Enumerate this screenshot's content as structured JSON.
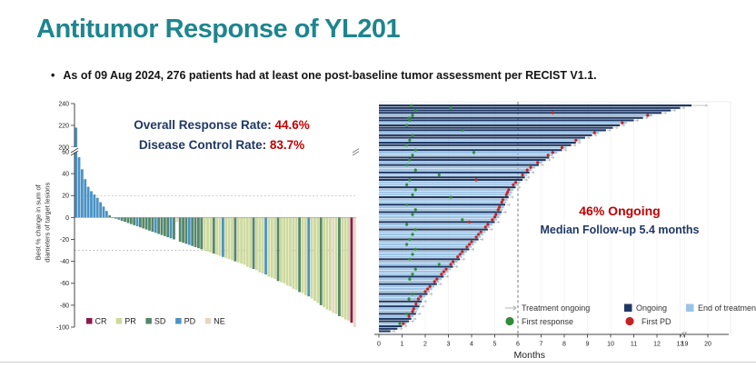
{
  "slide": {
    "title": "Antitumor Response of YL201",
    "bullet_glyph": "•",
    "bullet": "As of 09 Aug 2024, 276 patients had at least one post-baseline tumor assessment per RECIST V1.1.",
    "colors": {
      "title_teal": "#1e858e",
      "navy": "#1f3864",
      "red": "#c00000"
    }
  },
  "chart_data": [
    {
      "id": "waterfall",
      "type": "bar",
      "n_patients": 276,
      "ylabel_line1": "Best % change in sum of",
      "ylabel_line2": "diameters of target lesions",
      "yticks": [
        240,
        220,
        200,
        60,
        40,
        20,
        0,
        -20,
        -40,
        -60,
        -80,
        -100
      ],
      "ylim": [
        -100,
        240
      ],
      "axis_break_between": [
        60,
        200
      ],
      "ref_lines": [
        20,
        -30
      ],
      "overlay": {
        "orr_label": "Overall Response Rate:",
        "orr_value": "44.6%",
        "dcr_label": "Disease Control Rate:",
        "dcr_value": "83.7%"
      },
      "legend": [
        {
          "label": "CR",
          "color": "#8c1a4b"
        },
        {
          "label": "PR",
          "color": "#cdd99e"
        },
        {
          "label": "SD",
          "color": "#55876a"
        },
        {
          "label": "PD",
          "color": "#4b93c5"
        },
        {
          "label": "NE",
          "color": "#e6d6c2"
        }
      ],
      "bars": [
        [
          218,
          "PD"
        ],
        [
          55,
          "PD"
        ],
        [
          44,
          "PD"
        ],
        [
          35,
          "PD"
        ],
        [
          28,
          "PD"
        ],
        [
          24,
          "PD"
        ],
        [
          21,
          "PD"
        ],
        [
          18,
          "PD"
        ],
        [
          14,
          "PD"
        ],
        [
          10,
          "PD"
        ],
        [
          6,
          "PD"
        ],
        [
          2,
          "SD"
        ],
        [
          0,
          "SD"
        ],
        [
          -1,
          "SD"
        ],
        [
          -2,
          "PD"
        ],
        [
          -3,
          "SD"
        ],
        [
          -4,
          "SD"
        ],
        [
          -5,
          "SD"
        ],
        [
          -6,
          "SD"
        ],
        [
          -7,
          "SD"
        ],
        [
          -8,
          "PD"
        ],
        [
          -9,
          "SD"
        ],
        [
          -10,
          "SD"
        ],
        [
          -11,
          "SD"
        ],
        [
          -12,
          "SD"
        ],
        [
          -13,
          "SD"
        ],
        [
          -14,
          "PD"
        ],
        [
          -15,
          "SD"
        ],
        [
          -16,
          "SD"
        ],
        [
          -17,
          "SD"
        ],
        [
          -18,
          "SD"
        ],
        [
          -19,
          "PD"
        ],
        [
          -20,
          "SD"
        ],
        [
          -4,
          "NE"
        ],
        [
          -22,
          "SD"
        ],
        [
          -23,
          "SD"
        ],
        [
          -24,
          "SD"
        ],
        [
          -25,
          "PD"
        ],
        [
          -26,
          "SD"
        ],
        [
          -27,
          "SD"
        ],
        [
          -28,
          "SD"
        ],
        [
          -29,
          "SD"
        ],
        [
          -30,
          "PR"
        ],
        [
          -31,
          "PR"
        ],
        [
          -32,
          "PR"
        ],
        [
          -33,
          "SD"
        ],
        [
          -34,
          "PR"
        ],
        [
          -35,
          "PR"
        ],
        [
          -36,
          "PD"
        ],
        [
          -37,
          "PR"
        ],
        [
          -38,
          "PR"
        ],
        [
          -39,
          "PR"
        ],
        [
          -40,
          "SD"
        ],
        [
          -41,
          "PR"
        ],
        [
          -42,
          "PR"
        ],
        [
          -43,
          "PR"
        ],
        [
          -45,
          "PR"
        ],
        [
          -46,
          "PR"
        ],
        [
          -47,
          "SD"
        ],
        [
          -48,
          "PR"
        ],
        [
          -50,
          "PR"
        ],
        [
          -51,
          "PR"
        ],
        [
          -52,
          "PD"
        ],
        [
          -54,
          "PR"
        ],
        [
          -55,
          "PR"
        ],
        [
          -56,
          "PR"
        ],
        [
          -58,
          "SD"
        ],
        [
          -59,
          "PR"
        ],
        [
          -60,
          "PR"
        ],
        [
          -62,
          "PR"
        ],
        [
          -63,
          "PR"
        ],
        [
          -65,
          "PR"
        ],
        [
          -66,
          "PR"
        ],
        [
          -68,
          "SD"
        ],
        [
          -69,
          "PR"
        ],
        [
          -71,
          "PR"
        ],
        [
          -72,
          "PD"
        ],
        [
          -74,
          "PR"
        ],
        [
          -76,
          "PR"
        ],
        [
          -78,
          "PR"
        ],
        [
          -80,
          "SD"
        ],
        [
          -82,
          "PR"
        ],
        [
          -84,
          "PR"
        ],
        [
          -85,
          "PR"
        ],
        [
          -87,
          "NE"
        ],
        [
          -88,
          "PR"
        ],
        [
          -90,
          "SD"
        ],
        [
          -91,
          "PR"
        ],
        [
          -93,
          "PR"
        ],
        [
          -94,
          "PR"
        ],
        [
          -96,
          "CR"
        ],
        [
          -100,
          "NE"
        ]
      ]
    },
    {
      "id": "swimmer",
      "type": "bar-horizontal",
      "xlabel": "Months",
      "xticks": [
        0,
        1,
        2,
        3,
        4,
        5,
        6,
        7,
        8,
        9,
        10,
        11,
        12,
        13,
        19,
        20
      ],
      "xlim": [
        0,
        20
      ],
      "axis_break_between": [
        13,
        19
      ],
      "dashed_ref_x": 6,
      "annotation": {
        "line1": "46% Ongoing",
        "line2": "Median Follow-up 5.4 months"
      },
      "legend": {
        "treatment_ongoing": "Treatment ongoing",
        "ongoing": "Ongoing",
        "end_of_treatment": "End of treatment",
        "first_response": "First response",
        "first_pd": "First PD"
      },
      "colors": {
        "ongoing": "#1f3864",
        "ended": "#9cc3e5",
        "first_response": "#2e8b3a",
        "first_pd": "#c42323",
        "arrow": "#c0c0c0"
      },
      "rows": [
        [
          19.3,
          1,
          1.4,
          null
        ],
        [
          13.0,
          1,
          3.1,
          null
        ],
        [
          12.6,
          1,
          1.58,
          null
        ],
        [
          12.2,
          1,
          null,
          7.5
        ],
        [
          11.8,
          0,
          1.45,
          11.6
        ],
        [
          11.4,
          1,
          1.3,
          null
        ],
        [
          11.0,
          1,
          1.33,
          null
        ],
        [
          10.7,
          0,
          null,
          10.5
        ],
        [
          10.4,
          1,
          1.2,
          null
        ],
        [
          10.1,
          1,
          null,
          null
        ],
        [
          9.8,
          1,
          3.6,
          null
        ],
        [
          9.5,
          0,
          null,
          9.3
        ],
        [
          9.2,
          1,
          1.45,
          null
        ],
        [
          8.9,
          1,
          null,
          null
        ],
        [
          8.7,
          0,
          1.33,
          8.5
        ],
        [
          8.5,
          1,
          null,
          null
        ],
        [
          8.3,
          1,
          1.2,
          null
        ],
        [
          8.1,
          0,
          null,
          7.9
        ],
        [
          7.9,
          1,
          1.58,
          null
        ],
        [
          7.7,
          0,
          4.1,
          7.5
        ],
        [
          7.5,
          0,
          1.45,
          7.3
        ],
        [
          7.35,
          1,
          null,
          null
        ],
        [
          7.2,
          1,
          1.33,
          null
        ],
        [
          7.05,
          0,
          null,
          6.85
        ],
        [
          6.9,
          1,
          1.2,
          null
        ],
        [
          6.75,
          0,
          null,
          6.55
        ],
        [
          6.6,
          0,
          1.58,
          6.4
        ],
        [
          6.5,
          1,
          null,
          null
        ],
        [
          6.4,
          0,
          2.6,
          6.2
        ],
        [
          6.3,
          1,
          null,
          null
        ],
        [
          6.2,
          1,
          1.33,
          4.2
        ],
        [
          6.1,
          0,
          null,
          5.9
        ],
        [
          6.0,
          0,
          1.2,
          5.8
        ],
        [
          5.9,
          1,
          null,
          null
        ],
        [
          5.8,
          0,
          1.58,
          5.6
        ],
        [
          5.75,
          0,
          null,
          5.55
        ],
        [
          5.7,
          0,
          1.45,
          5.5
        ],
        [
          5.6,
          1,
          3.1,
          null
        ],
        [
          5.55,
          0,
          null,
          5.35
        ],
        [
          5.5,
          0,
          null,
          5.3
        ],
        [
          5.45,
          1,
          1.2,
          null
        ],
        [
          5.4,
          0,
          null,
          5.2
        ],
        [
          5.35,
          0,
          1.58,
          5.15
        ],
        [
          5.3,
          1,
          null,
          null
        ],
        [
          5.25,
          0,
          1.45,
          5.05
        ],
        [
          5.2,
          0,
          null,
          5.0
        ],
        [
          5.1,
          0,
          3.6,
          4.9
        ],
        [
          5.0,
          1,
          null,
          3.9
        ],
        [
          4.9,
          0,
          1.2,
          4.7
        ],
        [
          4.8,
          0,
          null,
          4.6
        ],
        [
          4.7,
          1,
          1.58,
          null
        ],
        [
          4.6,
          0,
          null,
          4.4
        ],
        [
          4.5,
          0,
          1.45,
          4.3
        ],
        [
          4.4,
          0,
          null,
          4.2
        ],
        [
          4.3,
          1,
          1.33,
          null
        ],
        [
          4.2,
          0,
          null,
          4.0
        ],
        [
          4.1,
          0,
          1.2,
          3.9
        ],
        [
          4.0,
          0,
          null,
          3.8
        ],
        [
          3.9,
          1,
          1.58,
          null
        ],
        [
          3.8,
          0,
          null,
          3.6
        ],
        [
          3.7,
          0,
          1.45,
          3.5
        ],
        [
          3.6,
          0,
          null,
          3.4
        ],
        [
          3.5,
          1,
          1.33,
          null
        ],
        [
          3.4,
          0,
          null,
          3.2
        ],
        [
          3.3,
          0,
          2.6,
          3.1
        ],
        [
          3.2,
          1,
          null,
          null
        ],
        [
          3.1,
          0,
          1.58,
          2.9
        ],
        [
          3.0,
          0,
          null,
          2.8
        ],
        [
          2.9,
          0,
          1.45,
          2.7
        ],
        [
          2.8,
          1,
          null,
          null
        ],
        [
          2.7,
          0,
          1.33,
          2.5
        ],
        [
          2.6,
          0,
          null,
          2.4
        ],
        [
          2.5,
          1,
          null,
          null
        ],
        [
          2.4,
          0,
          null,
          2.2
        ],
        [
          2.3,
          0,
          null,
          2.1
        ],
        [
          2.2,
          0,
          null,
          2.0
        ],
        [
          2.1,
          1,
          1.45,
          null
        ],
        [
          2.0,
          0,
          null,
          1.8
        ],
        [
          1.9,
          0,
          1.3,
          1.7
        ],
        [
          1.85,
          1,
          null,
          null
        ],
        [
          1.8,
          0,
          null,
          1.6
        ],
        [
          1.75,
          1,
          null,
          null
        ],
        [
          1.7,
          0,
          null,
          1.5
        ],
        [
          1.65,
          0,
          null,
          1.45
        ],
        [
          1.6,
          1,
          1.2,
          null
        ],
        [
          1.5,
          0,
          null,
          1.3
        ],
        [
          1.4,
          1,
          null,
          null
        ],
        [
          1.3,
          1,
          null,
          null
        ],
        [
          1.2,
          0,
          0.9,
          1.05
        ],
        [
          1.0,
          1,
          null,
          null
        ],
        [
          0.8,
          1,
          null,
          null
        ],
        [
          0.5,
          1,
          null,
          null
        ]
      ]
    }
  ]
}
